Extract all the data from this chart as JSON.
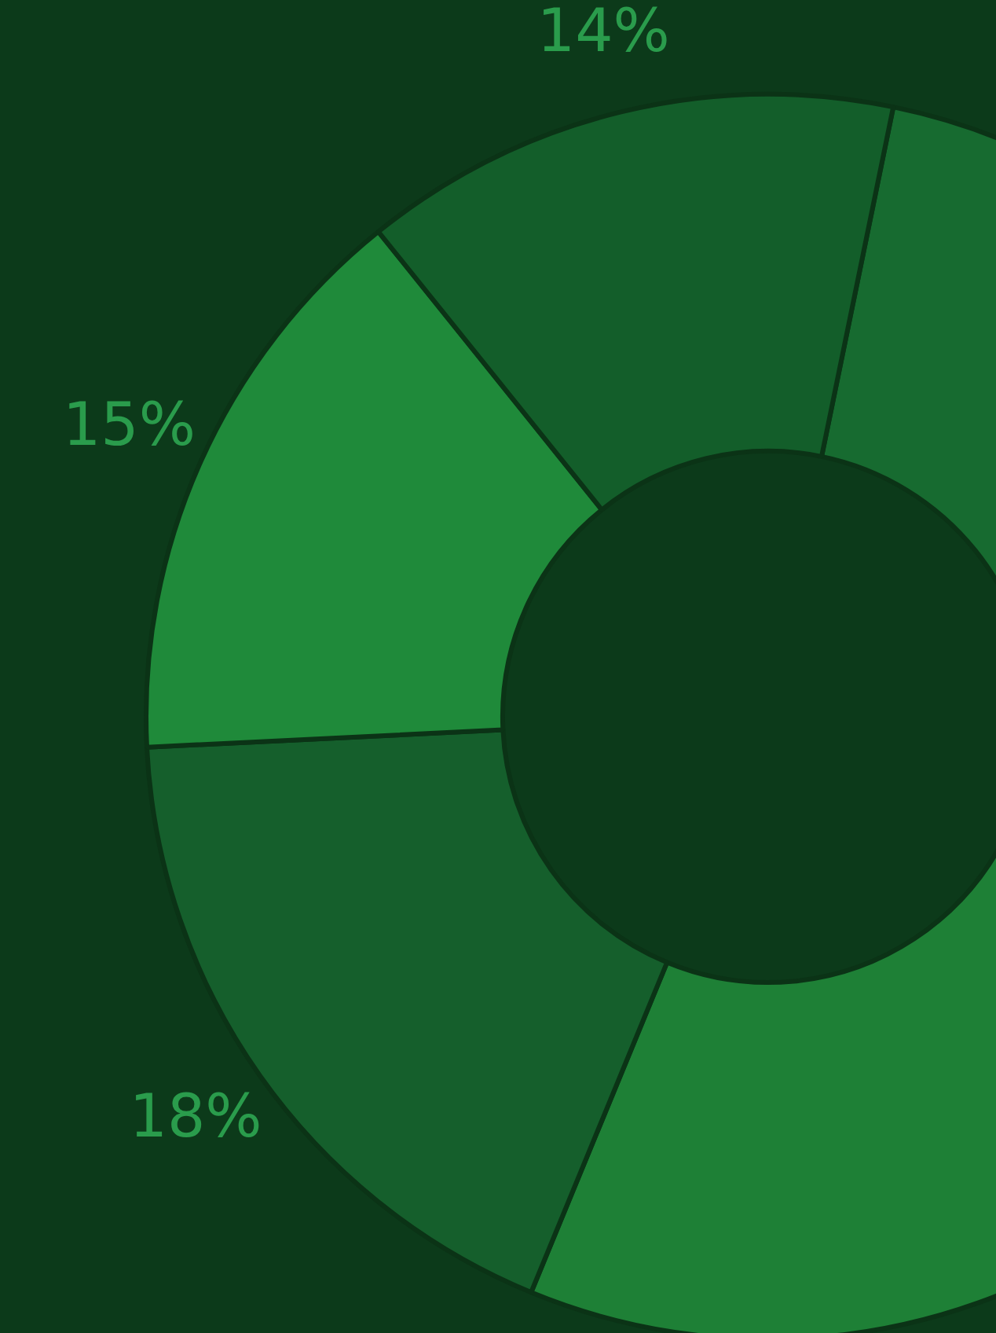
{
  "chart_data": {
    "type": "donut",
    "categories": [
      null,
      null,
      null,
      null,
      null
    ],
    "values": [
      22,
      31,
      18,
      15,
      14
    ],
    "colors": [
      "#176b30",
      "#1e8036",
      "#155f2c",
      "#1f8a3a",
      "#135e2a"
    ],
    "value_labels": [
      null,
      null,
      "18%",
      "15%",
      "14%"
    ]
  }
}
